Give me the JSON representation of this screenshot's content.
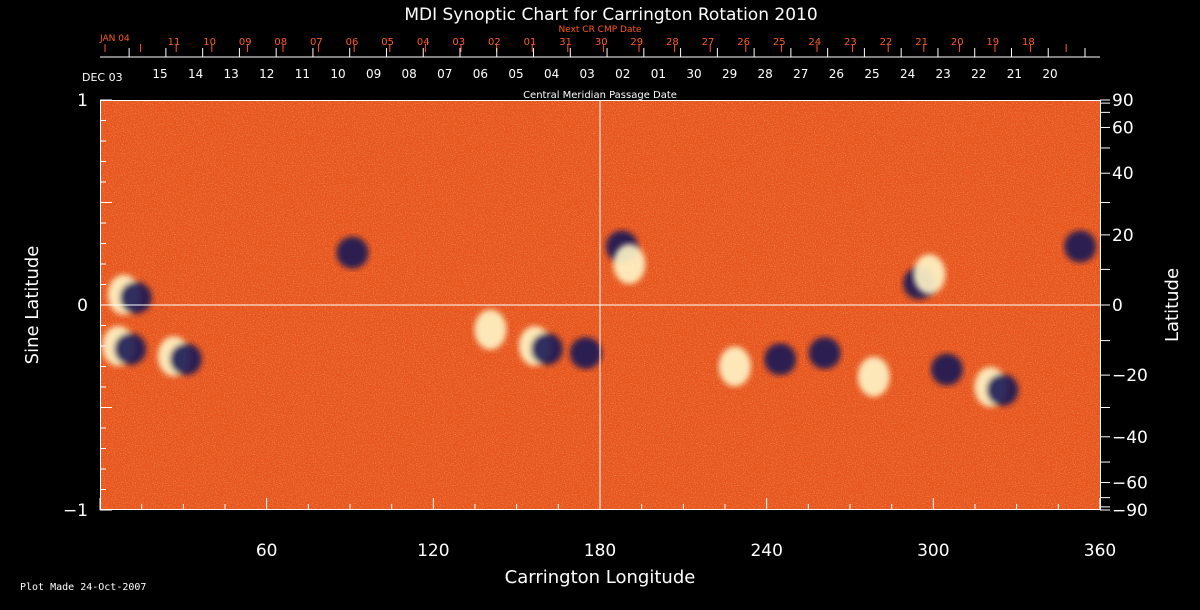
{
  "chart_data": {
    "type": "heatmap",
    "title": "MDI Synoptic Chart for Carrington Rotation 2010",
    "xlabel": "Carrington Longitude",
    "ylabel_left": "Sine Latitude",
    "ylabel_right": "Latitude",
    "xlim": [
      0,
      360
    ],
    "ylim": [
      -1,
      1
    ],
    "x_ticks": [
      60,
      120,
      180,
      240,
      300,
      360
    ],
    "y_ticks_left": [
      -1,
      0,
      1
    ],
    "y_ticks_right": [
      90,
      60,
      40,
      20,
      0,
      -20,
      -40,
      -60,
      -90
    ],
    "top_axis_label": "Central Meridian Passage Date",
    "top_axis_first": "DEC 03",
    "top_axis_dates": [
      "15",
      "14",
      "13",
      "12",
      "11",
      "10",
      "09",
      "08",
      "07",
      "06",
      "05",
      "04",
      "03",
      "02",
      "01",
      "30",
      "29",
      "28",
      "27",
      "26",
      "25",
      "24",
      "23",
      "22",
      "21",
      "20"
    ],
    "next_axis_label": "Next CR CMP Date",
    "next_axis_first": "JAN 04",
    "next_axis_dates": [
      "11",
      "10",
      "09",
      "08",
      "07",
      "06",
      "05",
      "04",
      "03",
      "02",
      "01",
      "31",
      "30",
      "29",
      "28",
      "27",
      "26",
      "25",
      "24",
      "23",
      "22",
      "21",
      "20",
      "19",
      "18"
    ],
    "grid": "crosshair at longitude 180 and sine latitude 0",
    "colors": {
      "background": "#e8541c",
      "positive_flux": "#fff6c8",
      "negative_flux": "#1a1a55",
      "axis": "#ffffff",
      "next_axis": "#ff5a1e"
    },
    "active_regions": [
      {
        "lon": 10,
        "sinlat": 0.05,
        "pol": "mixed"
      },
      {
        "lon": 8,
        "sinlat": -0.2,
        "pol": "mixed"
      },
      {
        "lon": 28,
        "sinlat": -0.25,
        "pol": "mixed"
      },
      {
        "lon": 88,
        "sinlat": 0.27,
        "pol": "negative"
      },
      {
        "lon": 142,
        "sinlat": -0.12,
        "pol": "positive"
      },
      {
        "lon": 158,
        "sinlat": -0.2,
        "pol": "mixed"
      },
      {
        "lon": 172,
        "sinlat": -0.22,
        "pol": "negative"
      },
      {
        "lon": 185,
        "sinlat": 0.3,
        "pol": "negative"
      },
      {
        "lon": 192,
        "sinlat": 0.2,
        "pol": "positive"
      },
      {
        "lon": 230,
        "sinlat": -0.3,
        "pol": "positive"
      },
      {
        "lon": 242,
        "sinlat": -0.25,
        "pol": "negative"
      },
      {
        "lon": 258,
        "sinlat": -0.22,
        "pol": "negative"
      },
      {
        "lon": 280,
        "sinlat": -0.35,
        "pol": "positive"
      },
      {
        "lon": 292,
        "sinlat": 0.12,
        "pol": "negative"
      },
      {
        "lon": 300,
        "sinlat": 0.15,
        "pol": "positive"
      },
      {
        "lon": 302,
        "sinlat": -0.3,
        "pol": "negative"
      },
      {
        "lon": 322,
        "sinlat": -0.4,
        "pol": "mixed"
      },
      {
        "lon": 350,
        "sinlat": 0.3,
        "pol": "negative"
      }
    ]
  },
  "footer": {
    "plot_made": "Plot Made 24-Oct-2007"
  }
}
